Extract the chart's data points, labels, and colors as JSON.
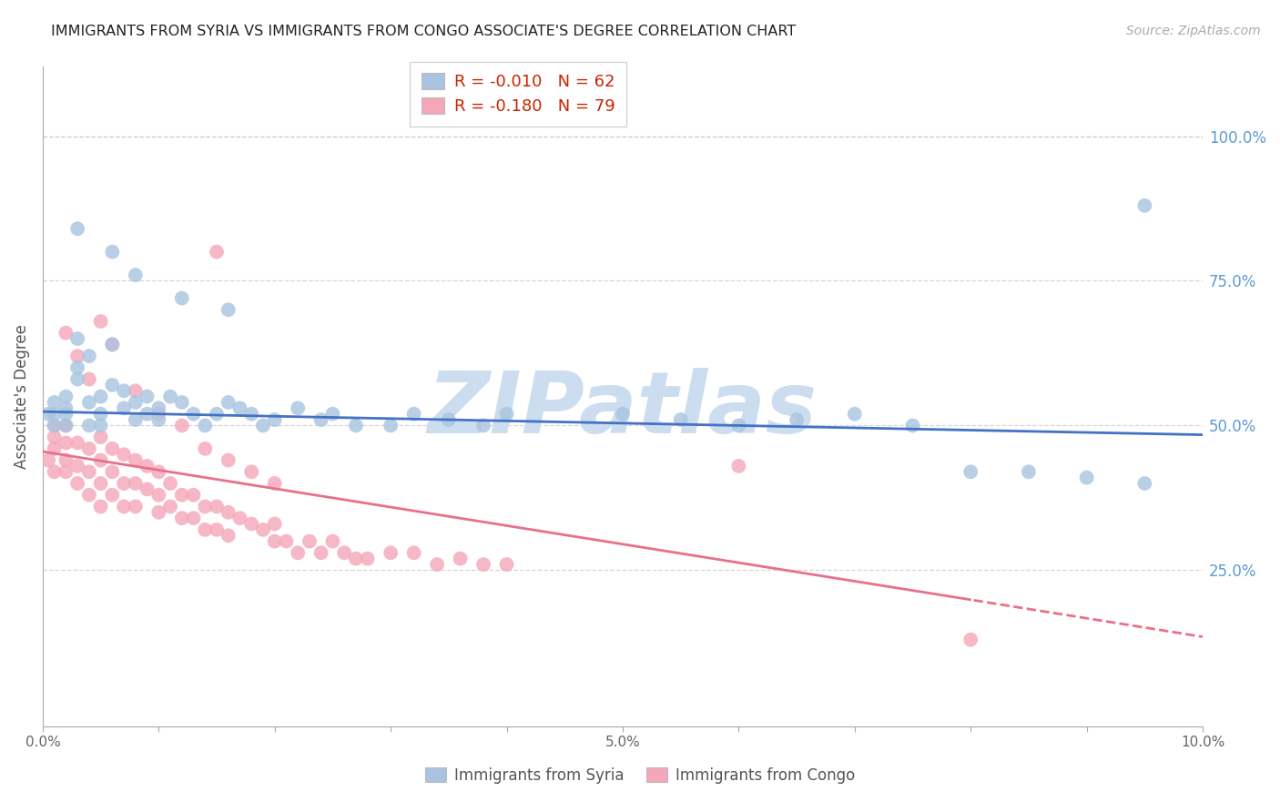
{
  "title": "IMMIGRANTS FROM SYRIA VS IMMIGRANTS FROM CONGO ASSOCIATE'S DEGREE CORRELATION CHART",
  "source": "Source: ZipAtlas.com",
  "ylabel_left": "Associate's Degree",
  "ylabel_right_labels": [
    "100.0%",
    "75.0%",
    "50.0%",
    "25.0%"
  ],
  "ylabel_right_values": [
    1.0,
    0.75,
    0.5,
    0.25
  ],
  "xlim": [
    0.0,
    0.1
  ],
  "ylim": [
    -0.02,
    1.12
  ],
  "xtick_labels": [
    "0.0%",
    "",
    "",
    "",
    "",
    "5.0%",
    "",
    "",
    "",
    "",
    "10.0%"
  ],
  "xtick_values": [
    0.0,
    0.01,
    0.02,
    0.03,
    0.04,
    0.05,
    0.06,
    0.07,
    0.08,
    0.09,
    0.1
  ],
  "legend_syria": "Immigrants from Syria",
  "legend_congo": "Immigrants from Congo",
  "R_syria": "-0.010",
  "N_syria": "62",
  "R_congo": "-0.180",
  "N_congo": "79",
  "color_syria": "#a8c4e0",
  "color_congo": "#f4a7b9",
  "color_syria_line": "#4472c4",
  "color_congo_line": "#e8708a",
  "color_axis_right": "#5b9bd5",
  "watermark_text": "ZIPatlas",
  "watermark_color": "#ccddf0",
  "background_color": "#ffffff",
  "grid_color": "#cccccc",
  "syria_line_slope": -0.4,
  "syria_line_intercept": 0.524,
  "congo_line_slope": -3.2,
  "congo_line_intercept": 0.455,
  "syria_x": [
    0.0005,
    0.001,
    0.001,
    0.001,
    0.002,
    0.002,
    0.002,
    0.002,
    0.003,
    0.003,
    0.003,
    0.004,
    0.004,
    0.004,
    0.005,
    0.005,
    0.005,
    0.006,
    0.006,
    0.007,
    0.007,
    0.008,
    0.008,
    0.009,
    0.009,
    0.01,
    0.01,
    0.011,
    0.012,
    0.013,
    0.014,
    0.015,
    0.016,
    0.017,
    0.018,
    0.019,
    0.02,
    0.022,
    0.024,
    0.025,
    0.027,
    0.03,
    0.032,
    0.035,
    0.038,
    0.04,
    0.05,
    0.055,
    0.06,
    0.065,
    0.07,
    0.075,
    0.08,
    0.085,
    0.09,
    0.095,
    0.003,
    0.006,
    0.008,
    0.012,
    0.016,
    0.095
  ],
  "syria_y": [
    0.52,
    0.52,
    0.54,
    0.5,
    0.52,
    0.55,
    0.5,
    0.53,
    0.6,
    0.65,
    0.58,
    0.62,
    0.54,
    0.5,
    0.55,
    0.52,
    0.5,
    0.64,
    0.57,
    0.56,
    0.53,
    0.54,
    0.51,
    0.55,
    0.52,
    0.53,
    0.51,
    0.55,
    0.54,
    0.52,
    0.5,
    0.52,
    0.54,
    0.53,
    0.52,
    0.5,
    0.51,
    0.53,
    0.51,
    0.52,
    0.5,
    0.5,
    0.52,
    0.51,
    0.5,
    0.52,
    0.52,
    0.51,
    0.5,
    0.51,
    0.52,
    0.5,
    0.42,
    0.42,
    0.41,
    0.4,
    0.84,
    0.8,
    0.76,
    0.72,
    0.7,
    0.88
  ],
  "congo_x": [
    0.0005,
    0.001,
    0.001,
    0.001,
    0.001,
    0.002,
    0.002,
    0.002,
    0.002,
    0.003,
    0.003,
    0.003,
    0.004,
    0.004,
    0.004,
    0.005,
    0.005,
    0.005,
    0.005,
    0.006,
    0.006,
    0.006,
    0.007,
    0.007,
    0.007,
    0.008,
    0.008,
    0.008,
    0.009,
    0.009,
    0.01,
    0.01,
    0.01,
    0.011,
    0.011,
    0.012,
    0.012,
    0.013,
    0.013,
    0.014,
    0.014,
    0.015,
    0.015,
    0.016,
    0.016,
    0.017,
    0.018,
    0.019,
    0.02,
    0.02,
    0.021,
    0.022,
    0.023,
    0.024,
    0.025,
    0.026,
    0.027,
    0.028,
    0.03,
    0.032,
    0.034,
    0.036,
    0.038,
    0.04,
    0.002,
    0.003,
    0.004,
    0.005,
    0.006,
    0.008,
    0.01,
    0.012,
    0.014,
    0.016,
    0.018,
    0.02,
    0.06,
    0.08,
    0.015
  ],
  "congo_y": [
    0.44,
    0.5,
    0.46,
    0.42,
    0.48,
    0.47,
    0.44,
    0.5,
    0.42,
    0.47,
    0.43,
    0.4,
    0.46,
    0.42,
    0.38,
    0.44,
    0.48,
    0.4,
    0.36,
    0.46,
    0.42,
    0.38,
    0.45,
    0.4,
    0.36,
    0.44,
    0.4,
    0.36,
    0.43,
    0.39,
    0.42,
    0.38,
    0.35,
    0.4,
    0.36,
    0.38,
    0.34,
    0.38,
    0.34,
    0.36,
    0.32,
    0.36,
    0.32,
    0.35,
    0.31,
    0.34,
    0.33,
    0.32,
    0.33,
    0.3,
    0.3,
    0.28,
    0.3,
    0.28,
    0.3,
    0.28,
    0.27,
    0.27,
    0.28,
    0.28,
    0.26,
    0.27,
    0.26,
    0.26,
    0.66,
    0.62,
    0.58,
    0.68,
    0.64,
    0.56,
    0.52,
    0.5,
    0.46,
    0.44,
    0.42,
    0.4,
    0.43,
    0.13,
    0.8
  ]
}
